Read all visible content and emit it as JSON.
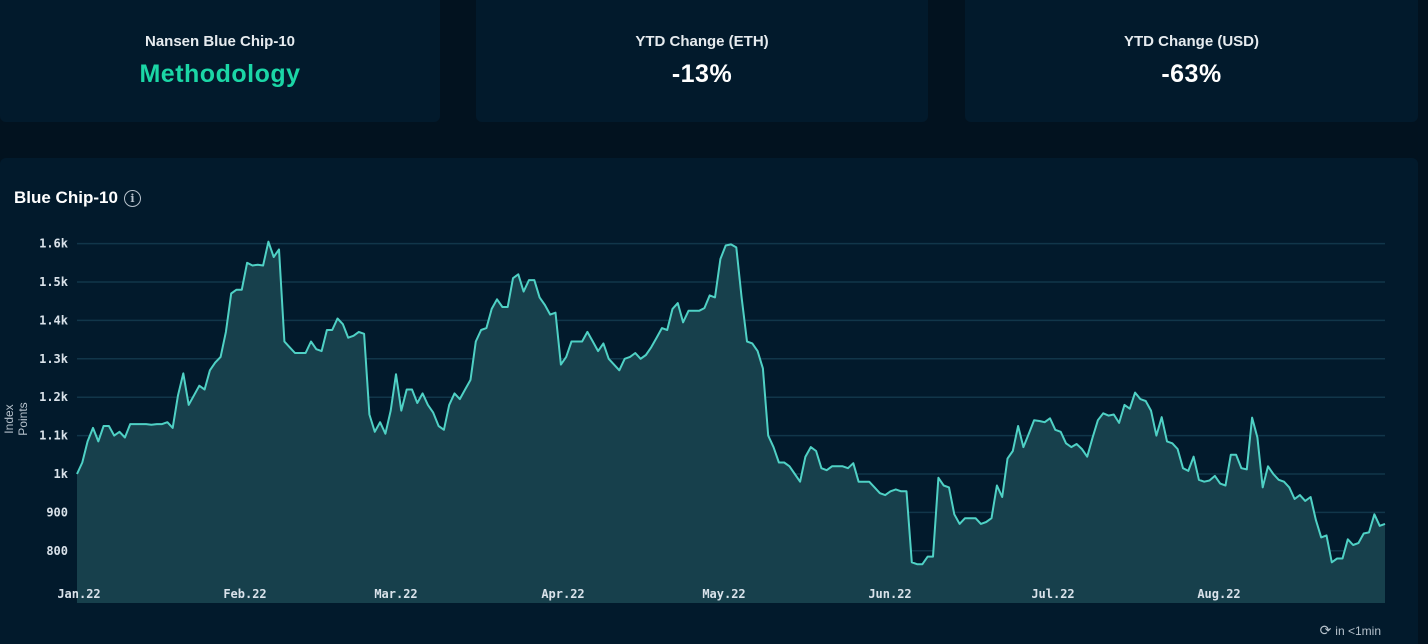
{
  "cards": [
    {
      "label": "Nansen Blue Chip-10",
      "value": "Methodology"
    },
    {
      "label": "YTD Change (ETH)",
      "value": "-13%"
    },
    {
      "label": "YTD Change (USD)",
      "value": "-63%"
    }
  ],
  "panel": {
    "title": "Blue Chip-10",
    "info_icon": "info-icon",
    "refresh_icon": "refresh-clock-icon",
    "refresh_text": "in <1min"
  },
  "colors": {
    "line": "#4fd1c5",
    "fill": "#17404c",
    "grid": "#11364a",
    "accent": "#1bd6a6"
  },
  "chart_data": {
    "type": "area",
    "title": "Blue Chip-10",
    "xlabel": "",
    "ylabel": "Index Points",
    "ylim": [
      730,
      1620
    ],
    "y_ticks": [
      800,
      900,
      1000,
      1100,
      1200,
      1300,
      1400,
      1500,
      1600
    ],
    "y_tick_labels": [
      "800",
      "900",
      "1k",
      "1.1k",
      "1.2k",
      "1.3k",
      "1.4k",
      "1.5k",
      "1.6k"
    ],
    "x_tick_labels": [
      "Jan.22",
      "Feb.22",
      "Mar.22",
      "Apr.22",
      "May.22",
      "Jun.22",
      "Jul.22",
      "Aug.22"
    ],
    "grid": true,
    "legend": "none",
    "series": [
      {
        "name": "Blue Chip-10",
        "values": [
          1000,
          1030,
          1085,
          1120,
          1085,
          1125,
          1125,
          1100,
          1110,
          1095,
          1130,
          1130,
          1130,
          1130,
          1128,
          1130,
          1130,
          1135,
          1120,
          1205,
          1262,
          1180,
          1205,
          1230,
          1220,
          1270,
          1290,
          1305,
          1370,
          1470,
          1480,
          1480,
          1550,
          1543,
          1545,
          1543,
          1605,
          1565,
          1585,
          1345,
          1330,
          1315,
          1315,
          1315,
          1345,
          1325,
          1320,
          1375,
          1375,
          1405,
          1390,
          1355,
          1360,
          1370,
          1365,
          1155,
          1110,
          1135,
          1105,
          1165,
          1260,
          1165,
          1220,
          1220,
          1185,
          1210,
          1180,
          1160,
          1125,
          1115,
          1180,
          1210,
          1195,
          1220,
          1245,
          1345,
          1375,
          1380,
          1430,
          1455,
          1435,
          1435,
          1510,
          1520,
          1475,
          1505,
          1505,
          1460,
          1440,
          1415,
          1420,
          1285,
          1305,
          1345,
          1345,
          1345,
          1370,
          1345,
          1320,
          1340,
          1300,
          1285,
          1270,
          1300,
          1305,
          1315,
          1300,
          1310,
          1330,
          1355,
          1380,
          1375,
          1430,
          1445,
          1395,
          1425,
          1425,
          1425,
          1432,
          1465,
          1460,
          1560,
          1595,
          1598,
          1590,
          1460,
          1345,
          1340,
          1320,
          1275,
          1100,
          1070,
          1030,
          1030,
          1020,
          1000,
          980,
          1045,
          1070,
          1060,
          1015,
          1010,
          1020,
          1020,
          1020,
          1015,
          1028,
          980,
          980,
          980,
          965,
          950,
          945,
          955,
          960,
          955,
          955,
          770,
          765,
          765,
          785,
          785,
          990,
          970,
          965,
          895,
          870,
          885,
          885,
          885,
          870,
          875,
          885,
          970,
          940,
          1040,
          1060,
          1125,
          1070,
          1105,
          1140,
          1138,
          1135,
          1145,
          1115,
          1110,
          1080,
          1070,
          1078,
          1065,
          1045,
          1095,
          1140,
          1158,
          1152,
          1155,
          1133,
          1180,
          1170,
          1212,
          1195,
          1190,
          1165,
          1100,
          1148,
          1085,
          1080,
          1065,
          1015,
          1008,
          1045,
          985,
          980,
          983,
          995,
          975,
          970,
          1050,
          1050,
          1015,
          1012,
          1147,
          1095,
          965,
          1020,
          1000,
          985,
          980,
          965,
          935,
          945,
          930,
          940,
          880,
          835,
          840,
          770,
          780,
          780,
          830,
          815,
          820,
          845,
          848,
          895,
          865,
          870
        ]
      }
    ]
  }
}
